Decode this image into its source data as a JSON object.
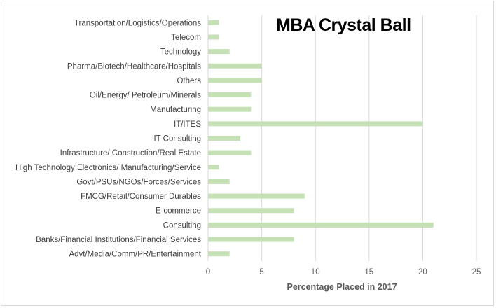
{
  "watermark": "MBA Crystal Ball",
  "chart_data": {
    "type": "bar",
    "orientation": "horizontal",
    "title": "",
    "xlabel": "Percentage Placed in 2017",
    "ylabel": "",
    "xlim": [
      0,
      25
    ],
    "xticks": [
      0,
      5,
      10,
      15,
      20,
      25
    ],
    "grid": true,
    "bar_color": "#c5e0b4",
    "categories": [
      "Transportation/Logistics/Operations",
      "Telecom",
      "Technology",
      "Pharma/Biotech/Healthcare/Hospitals",
      "Others",
      "Oil/Energy/ Petroleum/Minerals",
      "Manufacturing",
      "IT/ITES",
      "IT Consulting",
      "Infrastructure/ Construction/Real Estate",
      "High Technology Electronics/ Manufacturing/Service",
      "Govt/PSUs/NGOs/Forces/Services",
      "FMCG/Retail/Consumer Durables",
      "E-commerce",
      "Consulting",
      "Banks/Financial Institutions/Financial Services",
      "Advt/Media/Comm/PR/Entertainment"
    ],
    "values": [
      1,
      1,
      2,
      5,
      5,
      4,
      4,
      20,
      3,
      4,
      1,
      2,
      9,
      8,
      21,
      8,
      2
    ]
  }
}
